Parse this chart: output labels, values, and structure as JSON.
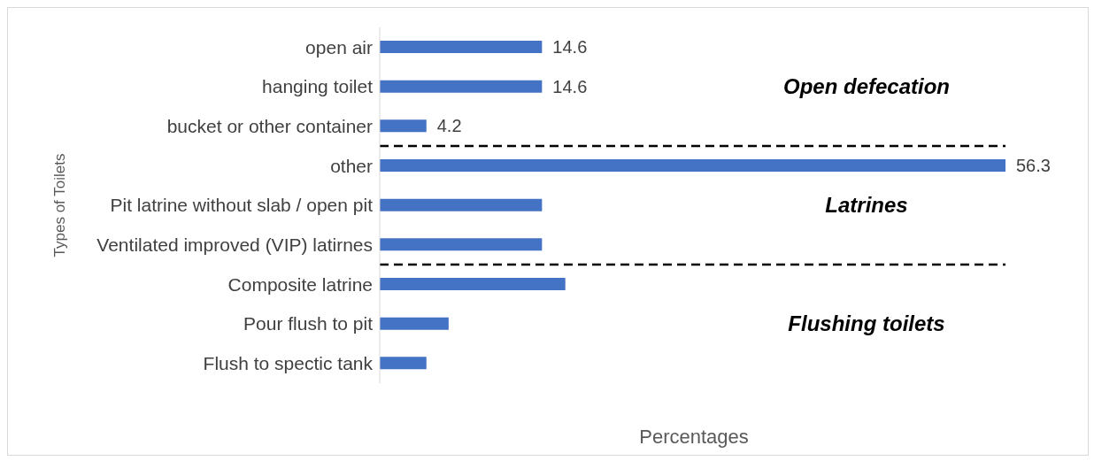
{
  "chart_data": {
    "type": "bar",
    "orientation": "horizontal",
    "ylabel": "Types of Toilets",
    "xlabel": "Percentages",
    "categories": [
      "open air",
      "hanging toilet",
      "bucket or other container",
      "other",
      "Pit latrine without slab / open pit",
      "Ventilated improved (VIP) latirnes",
      "Composite latrine",
      "Pour flush to pit",
      "Flush to spectic tank"
    ],
    "values": [
      14.6,
      14.6,
      4.2,
      56.3,
      14.6,
      14.6,
      16.7,
      6.2,
      4.2
    ],
    "value_labels": [
      "14.6",
      "14.6",
      "4.2",
      "56.3",
      null,
      null,
      null,
      null,
      null
    ],
    "color": "#4472c4",
    "ref_lines": [
      {
        "axis": "y",
        "value": "bucket or other container",
        "line_style": "dashed",
        "color": "#000000"
      },
      {
        "axis": "y",
        "value": "Ventilated improved (VIP) latirnes",
        "line_style": "dashed",
        "color": "#000000"
      }
    ],
    "annotations": [
      "Open defecation",
      "Latrines",
      "Flushing toilets"
    ],
    "grid": false,
    "legend": false
  }
}
